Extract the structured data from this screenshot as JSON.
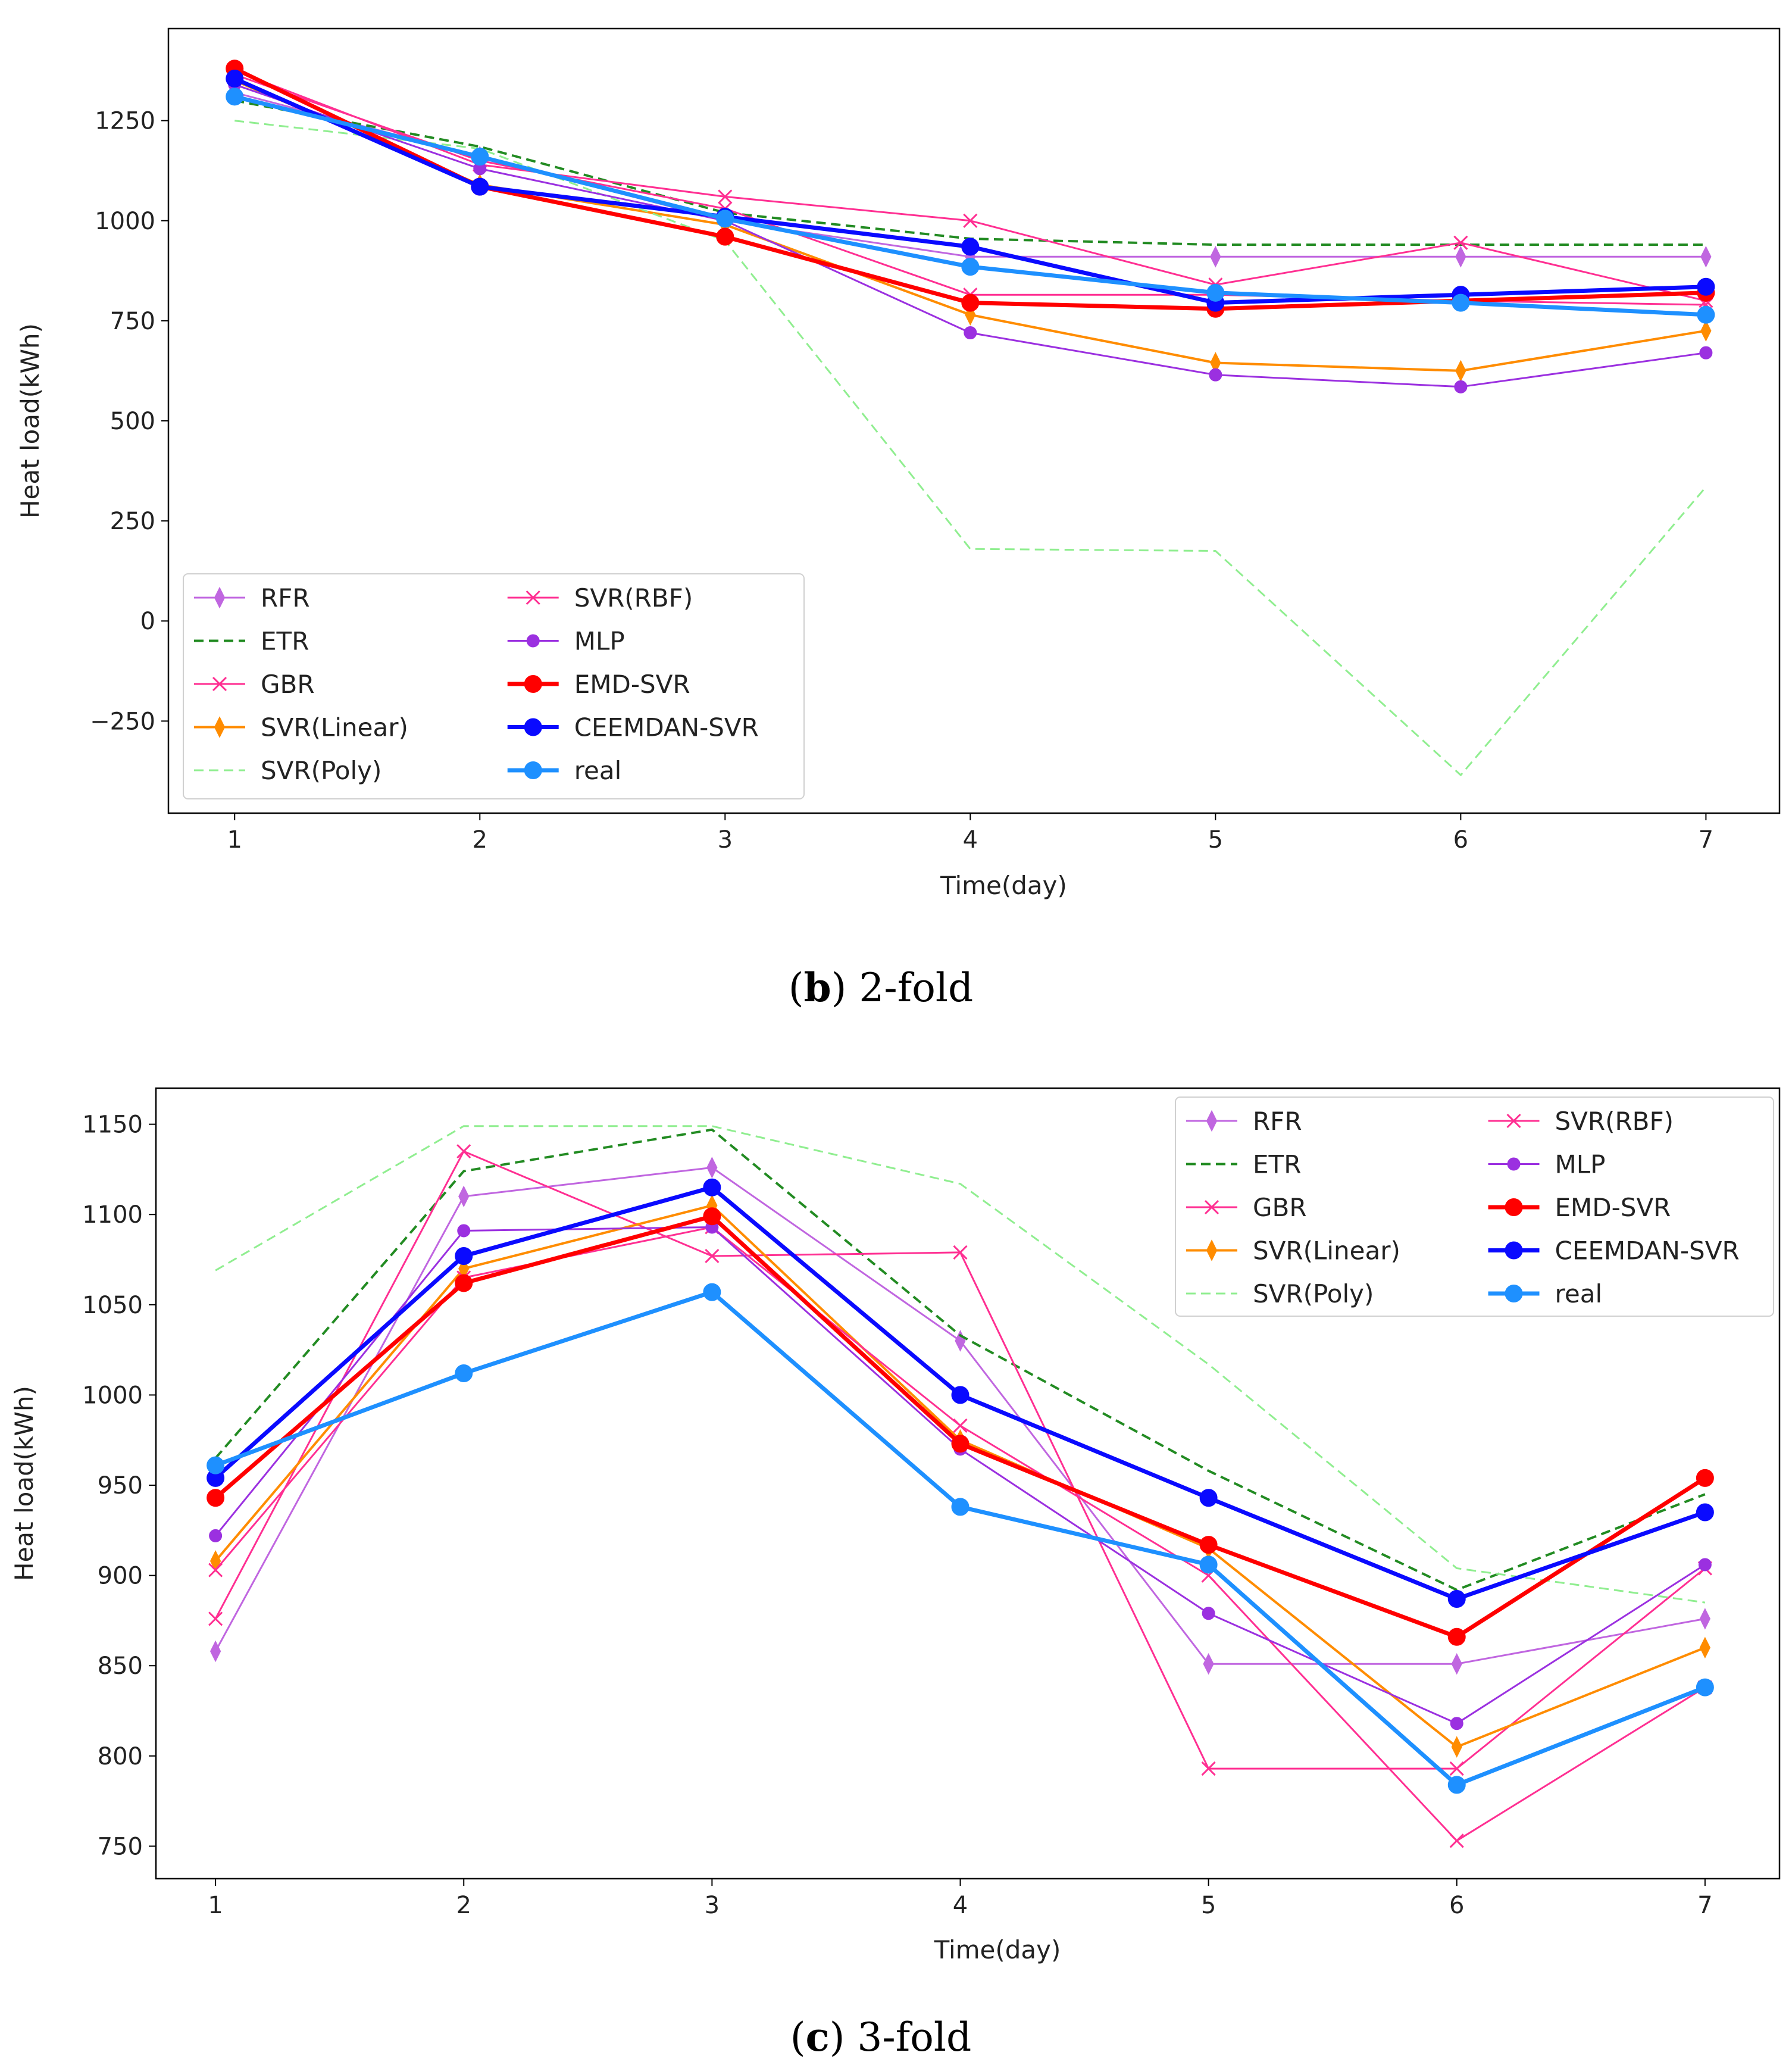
{
  "chart_data": [
    {
      "type": "line",
      "caption_letter": "b",
      "caption_text": "2-fold",
      "xlabel": "Time(day)",
      "ylabel": "Heat load(kWh)",
      "x": [
        1,
        2,
        3,
        4,
        5,
        6,
        7
      ],
      "xticks": [
        "1",
        "2",
        "3",
        "4",
        "5",
        "6",
        "7"
      ],
      "xlim": [
        0.73,
        7.3
      ],
      "ylim": [
        -480,
        1480
      ],
      "yticks": [
        -250,
        0,
        250,
        500,
        750,
        1000,
        1250
      ],
      "ytick_labels": [
        "−250",
        "0",
        "250",
        "500",
        "750",
        "1000",
        "1250"
      ],
      "legend_position": "lower-left",
      "series": [
        {
          "name": "RFR",
          "color": "#c066e0",
          "style": "solid",
          "marker": "thin_diamond",
          "width": 3,
          "values": [
            1320,
            1160,
            1000,
            910,
            910,
            910,
            910
          ]
        },
        {
          "name": "ETR",
          "color": "#228b22",
          "style": "dashed",
          "marker": "none",
          "width": 4,
          "values": [
            1300,
            1185,
            1020,
            955,
            940,
            940,
            940
          ]
        },
        {
          "name": "GBR",
          "color": "#ff2f92",
          "style": "solid",
          "marker": "x",
          "width": 3,
          "values": [
            1375,
            1140,
            1060,
            1000,
            840,
            945,
            800
          ]
        },
        {
          "name": "SVR(Linear)",
          "color": "#ff8c00",
          "style": "solid",
          "marker": "thin_diamond",
          "width": 4,
          "values": [
            1350,
            1090,
            990,
            765,
            645,
            625,
            725
          ]
        },
        {
          "name": "SVR(Poly)",
          "color": "#90ee90",
          "style": "dashed",
          "marker": "none",
          "width": 3,
          "values": [
            1250,
            1180,
            950,
            180,
            175,
            -385,
            335
          ]
        },
        {
          "name": "SVR(RBF)",
          "color": "#ff2f92",
          "style": "solid",
          "marker": "x",
          "width": 3,
          "values": [
            1365,
            1150,
            1030,
            815,
            815,
            800,
            790
          ]
        },
        {
          "name": "MLP",
          "color": "#9b30e0",
          "style": "solid",
          "marker": "circle_small",
          "width": 3,
          "values": [
            1340,
            1130,
            1000,
            720,
            615,
            585,
            670
          ]
        },
        {
          "name": "EMD-SVR",
          "color": "#ff0000",
          "style": "solid",
          "marker": "circle",
          "width": 7,
          "values": [
            1380,
            1085,
            960,
            795,
            780,
            800,
            820
          ]
        },
        {
          "name": "CEEMDAN-SVR",
          "color": "#0a0aff",
          "style": "solid",
          "marker": "circle",
          "width": 7,
          "values": [
            1355,
            1085,
            1010,
            935,
            795,
            815,
            835
          ]
        },
        {
          "name": "real",
          "color": "#1e90ff",
          "style": "solid",
          "marker": "circle",
          "width": 7,
          "values": [
            1310,
            1160,
            1005,
            885,
            820,
            795,
            765
          ]
        }
      ]
    },
    {
      "type": "line",
      "caption_letter": "c",
      "caption_text": "3-fold",
      "xlabel": "Time(day)",
      "ylabel": "Heat load(kWh)",
      "x": [
        1,
        2,
        3,
        4,
        5,
        6,
        7
      ],
      "xticks": [
        "1",
        "2",
        "3",
        "4",
        "5",
        "6",
        "7"
      ],
      "xlim": [
        0.76,
        7.3
      ],
      "ylim": [
        732,
        1170
      ],
      "yticks": [
        750,
        800,
        850,
        900,
        950,
        1000,
        1050,
        1100,
        1150
      ],
      "ytick_labels": [
        "750",
        "800",
        "850",
        "900",
        "950",
        "1000",
        "1050",
        "1100",
        "1150"
      ],
      "legend_position": "upper-right",
      "series": [
        {
          "name": "RFR",
          "color": "#c066e0",
          "style": "solid",
          "marker": "thin_diamond",
          "width": 3,
          "values": [
            858,
            1110,
            1126,
            1030,
            851,
            851,
            876
          ]
        },
        {
          "name": "ETR",
          "color": "#228b22",
          "style": "dashed",
          "marker": "none",
          "width": 4,
          "values": [
            965,
            1124,
            1147,
            1033,
            958,
            892,
            945
          ]
        },
        {
          "name": "GBR",
          "color": "#ff2f92",
          "style": "solid",
          "marker": "x",
          "width": 3,
          "values": [
            876,
            1135,
            1077,
            1079,
            793,
            793,
            904
          ]
        },
        {
          "name": "SVR(Linear)",
          "color": "#ff8c00",
          "style": "solid",
          "marker": "thin_diamond",
          "width": 4,
          "values": [
            908,
            1070,
            1105,
            975,
            915,
            805,
            860
          ]
        },
        {
          "name": "SVR(Poly)",
          "color": "#90ee90",
          "style": "dashed",
          "marker": "none",
          "width": 3,
          "values": [
            1069,
            1149,
            1149,
            1117,
            1017,
            904,
            885
          ]
        },
        {
          "name": "SVR(RBF)",
          "color": "#ff2f92",
          "style": "solid",
          "marker": "x",
          "width": 3,
          "values": [
            903,
            1065,
            1093,
            983,
            900,
            753,
            838
          ]
        },
        {
          "name": "MLP",
          "color": "#9b30e0",
          "style": "solid",
          "marker": "circle_small",
          "width": 3,
          "values": [
            922,
            1091,
            1093,
            970,
            879,
            818,
            906
          ]
        },
        {
          "name": "EMD-SVR",
          "color": "#ff0000",
          "style": "solid",
          "marker": "circle",
          "width": 7,
          "values": [
            943,
            1062,
            1099,
            973,
            917,
            866,
            954
          ]
        },
        {
          "name": "CEEMDAN-SVR",
          "color": "#0a0aff",
          "style": "solid",
          "marker": "circle",
          "width": 7,
          "values": [
            954,
            1077,
            1115,
            1000,
            943,
            887,
            935
          ]
        },
        {
          "name": "real",
          "color": "#1e90ff",
          "style": "solid",
          "marker": "circle",
          "width": 7,
          "values": [
            961,
            1012,
            1057,
            938,
            906,
            784,
            838
          ]
        }
      ]
    }
  ]
}
